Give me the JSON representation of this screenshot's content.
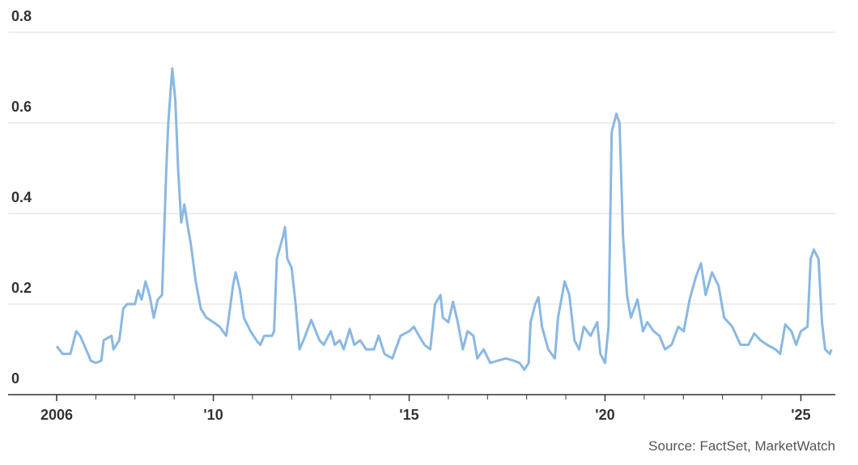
{
  "chart_data": {
    "type": "line",
    "source": "Source: FactSet, MarketWatch",
    "x": [
      2006.0,
      2006.15,
      2006.35,
      2006.5,
      2006.6,
      2006.8,
      2006.87,
      2007.0,
      2007.14,
      2007.2,
      2007.4,
      2007.45,
      2007.6,
      2007.7,
      2007.8,
      2008.0,
      2008.08,
      2008.17,
      2008.27,
      2008.37,
      2008.48,
      2008.58,
      2008.69,
      2008.8,
      2008.85,
      2008.95,
      2009.03,
      2009.1,
      2009.18,
      2009.26,
      2009.35,
      2009.43,
      2009.55,
      2009.68,
      2009.82,
      2010.0,
      2010.16,
      2010.33,
      2010.41,
      2010.5,
      2010.57,
      2010.68,
      2010.78,
      2010.95,
      2011.1,
      2011.2,
      2011.3,
      2011.5,
      2011.55,
      2011.62,
      2011.78,
      2011.83,
      2011.89,
      2012.0,
      2012.1,
      2012.2,
      2012.3,
      2012.5,
      2012.71,
      2012.82,
      2013.0,
      2013.1,
      2013.23,
      2013.33,
      2013.48,
      2013.6,
      2013.75,
      2013.9,
      2014.1,
      2014.22,
      2014.37,
      2014.57,
      2014.78,
      2015.0,
      2015.12,
      2015.25,
      2015.39,
      2015.54,
      2015.66,
      2015.8,
      2015.86,
      2016.0,
      2016.12,
      2016.24,
      2016.37,
      2016.49,
      2016.64,
      2016.74,
      2016.9,
      2017.07,
      2017.26,
      2017.47,
      2017.67,
      2017.82,
      2017.94,
      2018.05,
      2018.1,
      2018.22,
      2018.3,
      2018.39,
      2018.55,
      2018.72,
      2018.8,
      2018.97,
      2019.09,
      2019.22,
      2019.34,
      2019.46,
      2019.63,
      2019.8,
      2019.88,
      2020.0,
      2020.09,
      2020.17,
      2020.29,
      2020.37,
      2020.46,
      2020.56,
      2020.66,
      2020.83,
      2020.97,
      2021.08,
      2021.24,
      2021.39,
      2021.53,
      2021.7,
      2021.87,
      2022.01,
      2022.16,
      2022.32,
      2022.45,
      2022.57,
      2022.73,
      2022.9,
      2023.04,
      2023.25,
      2023.46,
      2023.66,
      2023.81,
      2023.97,
      2024.14,
      2024.35,
      2024.47,
      2024.6,
      2024.76,
      2024.88,
      2025.0,
      2025.17,
      2025.25,
      2025.33,
      2025.45,
      2025.54,
      2025.62,
      2025.74,
      2025.78
    ],
    "series": [
      {
        "color": "#8ab8e2",
        "values": [
          0.107,
          0.09,
          0.09,
          0.14,
          0.13,
          0.09,
          0.075,
          0.07,
          0.075,
          0.12,
          0.13,
          0.1,
          0.12,
          0.19,
          0.2,
          0.2,
          0.23,
          0.21,
          0.25,
          0.22,
          0.17,
          0.21,
          0.22,
          0.5,
          0.6,
          0.72,
          0.65,
          0.5,
          0.38,
          0.42,
          0.37,
          0.33,
          0.25,
          0.19,
          0.17,
          0.16,
          0.15,
          0.13,
          0.18,
          0.24,
          0.27,
          0.23,
          0.17,
          0.14,
          0.12,
          0.11,
          0.13,
          0.13,
          0.14,
          0.3,
          0.35,
          0.37,
          0.3,
          0.28,
          0.2,
          0.1,
          0.12,
          0.165,
          0.12,
          0.11,
          0.14,
          0.11,
          0.12,
          0.1,
          0.145,
          0.11,
          0.12,
          0.1,
          0.1,
          0.13,
          0.09,
          0.08,
          0.13,
          0.14,
          0.15,
          0.13,
          0.11,
          0.1,
          0.2,
          0.22,
          0.17,
          0.16,
          0.205,
          0.16,
          0.1,
          0.14,
          0.13,
          0.08,
          0.1,
          0.07,
          0.075,
          0.08,
          0.075,
          0.07,
          0.055,
          0.07,
          0.16,
          0.2,
          0.215,
          0.15,
          0.1,
          0.08,
          0.17,
          0.25,
          0.22,
          0.12,
          0.1,
          0.15,
          0.13,
          0.16,
          0.09,
          0.07,
          0.15,
          0.58,
          0.62,
          0.6,
          0.35,
          0.22,
          0.17,
          0.21,
          0.14,
          0.16,
          0.14,
          0.13,
          0.1,
          0.11,
          0.15,
          0.14,
          0.21,
          0.26,
          0.29,
          0.22,
          0.27,
          0.24,
          0.17,
          0.15,
          0.11,
          0.11,
          0.135,
          0.12,
          0.11,
          0.1,
          0.09,
          0.155,
          0.14,
          0.11,
          0.14,
          0.15,
          0.3,
          0.32,
          0.3,
          0.16,
          0.1,
          0.09,
          0.1
        ]
      }
    ],
    "xlim": [
      2004.76,
      2025.88
    ],
    "xticks": [
      {
        "value": 2006,
        "label": "2006"
      },
      {
        "value": 2010,
        "label": "'10"
      },
      {
        "value": 2015,
        "label": "'15"
      },
      {
        "value": 2020,
        "label": "'20"
      },
      {
        "value": 2025,
        "label": "'25"
      }
    ],
    "xminorticks": [
      2007,
      2008,
      2009,
      2011,
      2012,
      2013,
      2014,
      2016,
      2017,
      2018,
      2019,
      2021,
      2022,
      2023,
      2024
    ],
    "ylim": [
      0,
      0.85
    ],
    "yticks": [
      0,
      0.2,
      0.4,
      0.6,
      0.8
    ],
    "grid": true
  }
}
